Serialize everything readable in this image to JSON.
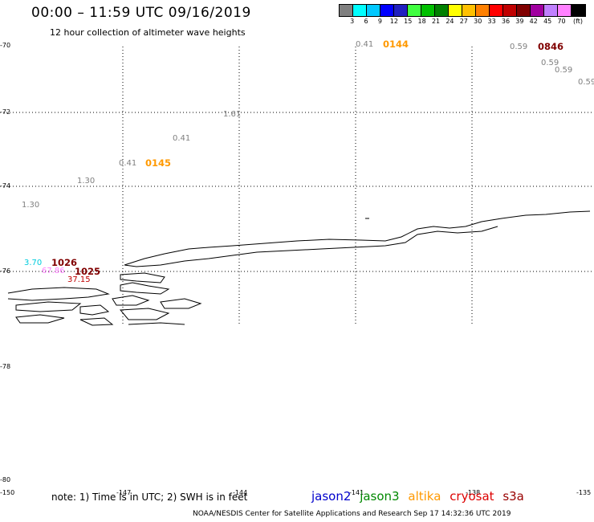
{
  "title": "00:00 – 11:59 UTC 09/16/2019",
  "subtitle": "12 hour collection of altimeter wave heights",
  "colorbar": {
    "colors": [
      "#808080",
      "#00ffff",
      "#00c8ff",
      "#0000ff",
      "#2020c0",
      "#40ff40",
      "#00c000",
      "#008000",
      "#ffff00",
      "#ffc000",
      "#ff8000",
      "#ff0000",
      "#c00000",
      "#800000",
      "#a000a0",
      "#c080ff",
      "#ff80ff",
      "#000000"
    ],
    "labels": [
      "3",
      "6",
      "9",
      "12",
      "15",
      "18",
      "21",
      "24",
      "27",
      "30",
      "33",
      "36",
      "39",
      "42",
      "45",
      "70"
    ],
    "unit": "(ft)"
  },
  "y_ticks": [
    "-70",
    "-72",
    "-74",
    "-76",
    "-78",
    "-78",
    "-80"
  ],
  "x_ticks": [
    "-150",
    "-147",
    "-144",
    "-141",
    "-138",
    "-135"
  ],
  "wave_labels": [
    {
      "text": "0.41",
      "color": "#808080"
    },
    {
      "text": "0144",
      "color": "#ff9900",
      "pass": true
    },
    {
      "text": "0.59",
      "color": "#808080"
    },
    {
      "text": "0846",
      "color": "#800000",
      "pass": true
    },
    {
      "text": "0.59",
      "color": "#808080"
    },
    {
      "text": "0.59",
      "color": "#808080"
    },
    {
      "text": "0.59",
      "color": "#808080"
    },
    {
      "text": "1.61",
      "color": "#808080"
    },
    {
      "text": "0.41",
      "color": "#808080"
    },
    {
      "text": "0.41",
      "color": "#808080"
    },
    {
      "text": "0145",
      "color": "#ff9900",
      "pass": true
    },
    {
      "text": "1.30",
      "color": "#808080"
    },
    {
      "text": "1.30",
      "color": "#808080"
    },
    {
      "text": "3.70",
      "color": "#00ccdd"
    },
    {
      "text": "1026",
      "color": "#800000",
      "pass": true
    },
    {
      "text": "67.86",
      "color": "#ff80ff"
    },
    {
      "text": "1025",
      "color": "#800000",
      "pass": true
    },
    {
      "text": "37.15",
      "color": "#c00000"
    }
  ],
  "note": "note:  1) Time is in UTC;  2) SWH is in feet",
  "satellites": [
    {
      "name": "jason2",
      "color": "#0000cc"
    },
    {
      "name": "jason3",
      "color": "#008800"
    },
    {
      "name": "altika",
      "color": "#ff9900"
    },
    {
      "name": "cryosat",
      "color": "#dd0000"
    },
    {
      "name": "s3a",
      "color": "#990000"
    }
  ],
  "footer": "NOAA/NESDIS Center for Satellite Applications and Research    Sep 17 14:32:36 UTC 2019"
}
